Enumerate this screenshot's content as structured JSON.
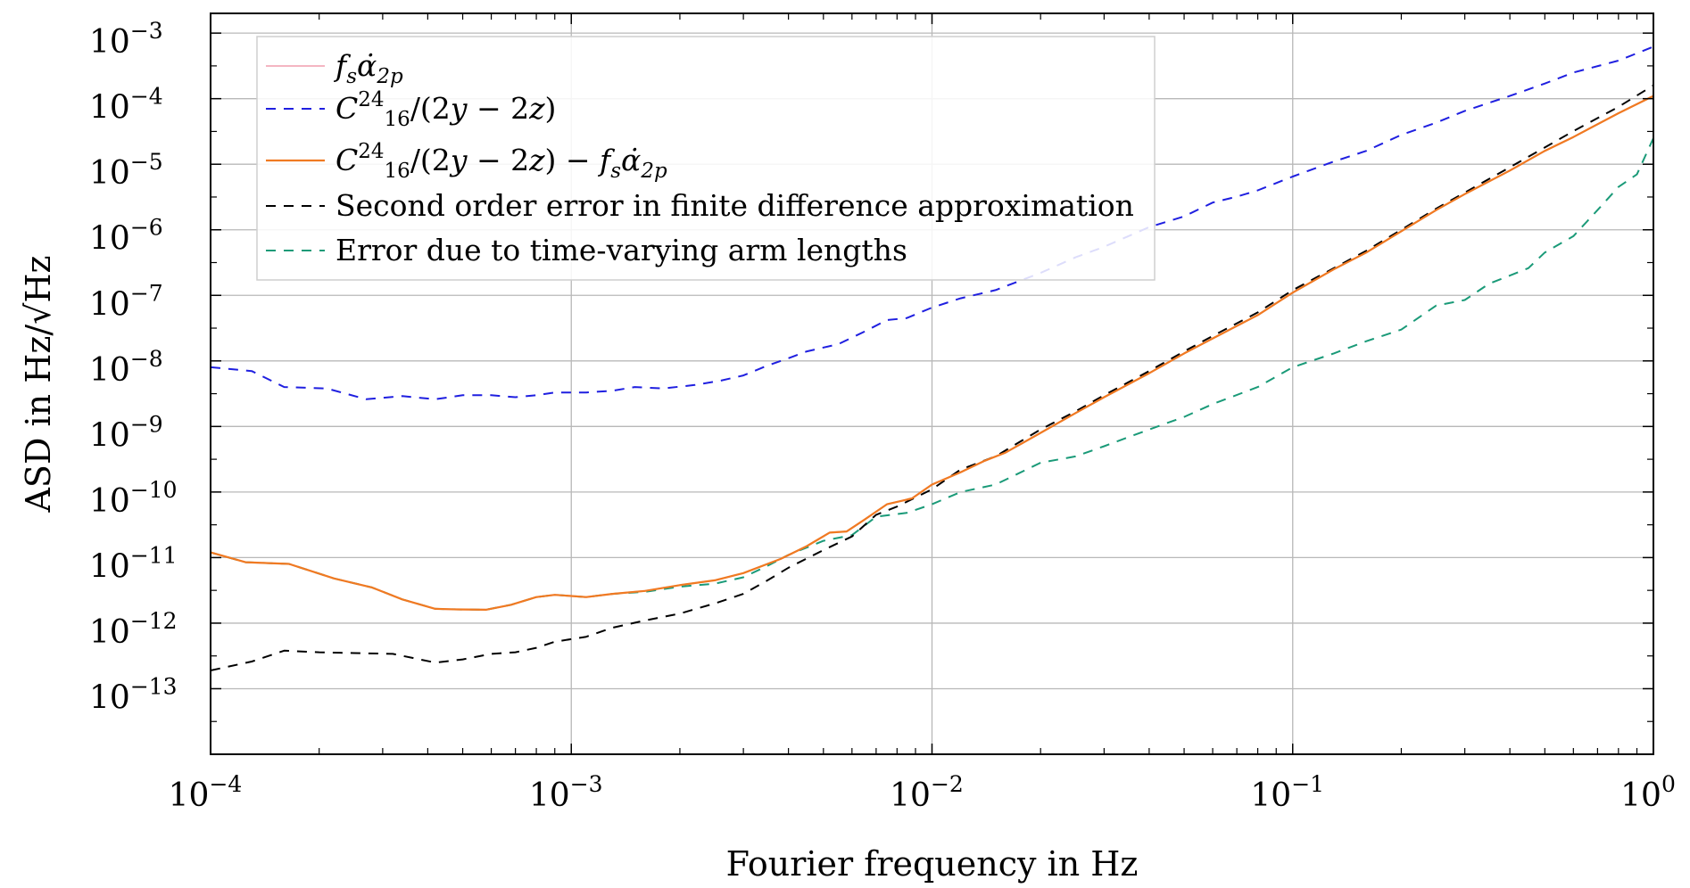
{
  "chart_data": {
    "type": "line",
    "title": "",
    "xlabel": "Fourier frequency in Hz",
    "ylabel": "ASD in Hz/√Hz",
    "xscale": "log",
    "yscale": "log",
    "xlim": [
      0.0001,
      1
    ],
    "ylim": [
      1e-14,
      0.002
    ],
    "grid": true,
    "legend_position": "top-left",
    "x_ticks": [
      {
        "value": 0.0001,
        "base": "10",
        "exp": "−4"
      },
      {
        "value": 0.001,
        "base": "10",
        "exp": "−3"
      },
      {
        "value": 0.01,
        "base": "10",
        "exp": "−2"
      },
      {
        "value": 0.1,
        "base": "10",
        "exp": "−1"
      },
      {
        "value": 1,
        "base": "10",
        "exp": "0"
      }
    ],
    "y_ticks": [
      {
        "value": 1e-13,
        "base": "10",
        "exp": "−13"
      },
      {
        "value": 1e-12,
        "base": "10",
        "exp": "−12"
      },
      {
        "value": 1e-11,
        "base": "10",
        "exp": "−11"
      },
      {
        "value": 1e-10,
        "base": "10",
        "exp": "−10"
      },
      {
        "value": 1e-09,
        "base": "10",
        "exp": "−9"
      },
      {
        "value": 1e-08,
        "base": "10",
        "exp": "−8"
      },
      {
        "value": 1e-07,
        "base": "10",
        "exp": "−7"
      },
      {
        "value": 1e-06,
        "base": "10",
        "exp": "−6"
      },
      {
        "value": 1e-05,
        "base": "10",
        "exp": "−5"
      },
      {
        "value": 0.0001,
        "base": "10",
        "exp": "−4"
      },
      {
        "value": 0.001,
        "base": "10",
        "exp": "−3"
      }
    ],
    "series": [
      {
        "name": "f_s α̇_2p",
        "legend": {
          "parts": [
            {
              "text": "f",
              "style": "italic"
            },
            {
              "text": "s",
              "style": "sub-italic"
            },
            {
              "text": "α̇",
              "style": "italic"
            },
            {
              "text": "2p",
              "style": "sub-italic"
            }
          ]
        },
        "color": "#f4b6c2",
        "dash": "solid",
        "width": 2,
        "x": [
          0.0001,
          0.000125,
          0.000165,
          0.00022,
          0.00028,
          0.00034,
          0.00042,
          0.00048,
          0.00058,
          0.00068,
          0.0008,
          0.0009,
          0.0011,
          0.0013,
          0.0016,
          0.002,
          0.0025,
          0.003,
          0.0038,
          0.0045,
          0.0052,
          0.0058,
          0.0065,
          0.0075,
          0.0088,
          0.01,
          0.012,
          0.014,
          0.016,
          0.02,
          0.025,
          0.03,
          0.04,
          0.05,
          0.06,
          0.08,
          0.1,
          0.13,
          0.16,
          0.2,
          0.25,
          0.3,
          0.4,
          0.5,
          0.6,
          0.8,
          1.0
        ],
        "values": [
          1.2e-11,
          8.5e-12,
          8e-12,
          4.8e-12,
          3.5e-12,
          2.3e-12,
          1.65e-12,
          1.62e-12,
          1.6e-12,
          1.9e-12,
          2.5e-12,
          2.7e-12,
          2.5e-12,
          2.8e-12,
          3.1e-12,
          3.8e-12,
          4.5e-12,
          5.8e-12,
          9.5e-12,
          1.5e-11,
          2.4e-11,
          2.5e-11,
          3.8e-11,
          6.5e-11,
          8e-11,
          1.3e-10,
          2e-10,
          3e-10,
          4e-10,
          8e-10,
          1.6e-09,
          2.8e-09,
          6.5e-09,
          1.3e-08,
          2.2e-08,
          5e-08,
          1.1e-07,
          2.5e-07,
          4.5e-07,
          9.5e-07,
          2e-06,
          3.5e-06,
          8e-06,
          1.6e-05,
          2.6e-05,
          6e-05,
          0.00011
        ]
      },
      {
        "name": "C_16^24/(2y − 2z)",
        "legend": {
          "parts": [
            {
              "text": "C",
              "style": "italic"
            },
            {
              "text": "24",
              "style": "sup"
            },
            {
              "text": "16",
              "style": "sub"
            },
            {
              "text": "/(2",
              "style": "normal"
            },
            {
              "text": "y",
              "style": "italic"
            },
            {
              "text": " − 2",
              "style": "normal"
            },
            {
              "text": "z",
              "style": "italic"
            },
            {
              "text": ")",
              "style": "normal"
            }
          ]
        },
        "color": "#1f1fe0",
        "dash": "dashed",
        "width": 2,
        "x": [
          0.0001,
          0.00013,
          0.00016,
          0.00021,
          0.00027,
          0.00034,
          0.00042,
          0.0005,
          0.0006,
          0.0007,
          0.0008,
          0.0009,
          0.0011,
          0.0013,
          0.0015,
          0.0018,
          0.0022,
          0.0026,
          0.003,
          0.0035,
          0.004,
          0.0045,
          0.0055,
          0.0065,
          0.0075,
          0.0085,
          0.01,
          0.012,
          0.015,
          0.02,
          0.025,
          0.03,
          0.04,
          0.05,
          0.06,
          0.07,
          0.08,
          0.1,
          0.13,
          0.16,
          0.2,
          0.25,
          0.3,
          0.4,
          0.5,
          0.6,
          0.8,
          1.0
        ],
        "values": [
          8e-09,
          7e-09,
          4e-09,
          3.8e-09,
          2.6e-09,
          2.9e-09,
          2.6e-09,
          3e-09,
          3e-09,
          2.8e-09,
          3e-09,
          3.3e-09,
          3.3e-09,
          3.5e-09,
          4e-09,
          3.8e-09,
          4.3e-09,
          5e-09,
          6e-09,
          8.5e-09,
          1.1e-08,
          1.4e-08,
          1.8e-08,
          2.8e-08,
          4.2e-08,
          4.5e-08,
          6.5e-08,
          9e-08,
          1.2e-07,
          2.2e-07,
          3.8e-07,
          5.5e-07,
          1.1e-06,
          1.6e-06,
          2.6e-06,
          3.2e-06,
          4e-06,
          6.5e-06,
          1.1e-05,
          1.6e-05,
          2.8e-05,
          4.3e-05,
          6.5e-05,
          0.00011,
          0.00017,
          0.00025,
          0.00038,
          0.00062
        ]
      },
      {
        "name": "C_16^24/(2y − 2z) − f_s α̇_2p",
        "legend": {
          "parts": [
            {
              "text": "C",
              "style": "italic"
            },
            {
              "text": "24",
              "style": "sup"
            },
            {
              "text": "16",
              "style": "sub"
            },
            {
              "text": "/(2",
              "style": "normal"
            },
            {
              "text": "y",
              "style": "italic"
            },
            {
              "text": " − 2",
              "style": "normal"
            },
            {
              "text": "z",
              "style": "italic"
            },
            {
              "text": ") − ",
              "style": "normal"
            },
            {
              "text": "f",
              "style": "italic"
            },
            {
              "text": "s",
              "style": "sub-italic"
            },
            {
              "text": "α̇",
              "style": "italic"
            },
            {
              "text": "2p",
              "style": "sub-italic"
            }
          ]
        },
        "color": "#f07a22",
        "dash": "solid",
        "width": 2.2,
        "x": [
          0.0001,
          0.000125,
          0.000165,
          0.00022,
          0.00028,
          0.00034,
          0.00042,
          0.00048,
          0.00058,
          0.00068,
          0.0008,
          0.0009,
          0.0011,
          0.0013,
          0.0016,
          0.002,
          0.0025,
          0.003,
          0.0038,
          0.0045,
          0.0052,
          0.0058,
          0.0065,
          0.0075,
          0.0088,
          0.01,
          0.012,
          0.014,
          0.016,
          0.02,
          0.025,
          0.03,
          0.04,
          0.05,
          0.06,
          0.08,
          0.1,
          0.13,
          0.16,
          0.2,
          0.25,
          0.3,
          0.4,
          0.5,
          0.6,
          0.8,
          1.0
        ],
        "values": [
          1.2e-11,
          8.5e-12,
          8e-12,
          4.8e-12,
          3.5e-12,
          2.3e-12,
          1.65e-12,
          1.62e-12,
          1.6e-12,
          1.9e-12,
          2.5e-12,
          2.7e-12,
          2.5e-12,
          2.8e-12,
          3.1e-12,
          3.8e-12,
          4.5e-12,
          5.8e-12,
          9.5e-12,
          1.5e-11,
          2.4e-11,
          2.5e-11,
          3.8e-11,
          6.5e-11,
          8e-11,
          1.3e-10,
          2e-10,
          3e-10,
          4e-10,
          8e-10,
          1.6e-09,
          2.8e-09,
          6.5e-09,
          1.3e-08,
          2.2e-08,
          5e-08,
          1.1e-07,
          2.5e-07,
          4.5e-07,
          9.5e-07,
          2e-06,
          3.5e-06,
          8e-06,
          1.6e-05,
          2.6e-05,
          6e-05,
          0.00011
        ]
      },
      {
        "name": "Second order error in finite difference approximation",
        "legend": {
          "parts": [
            {
              "text": "Second order error in finite difference approximation",
              "style": "normal"
            }
          ]
        },
        "color": "#000000",
        "dash": "dashed",
        "width": 2,
        "x": [
          0.0001,
          0.00013,
          0.00016,
          0.0002,
          0.00025,
          0.00032,
          0.00042,
          0.0005,
          0.0006,
          0.0007,
          0.0008,
          0.0009,
          0.0011,
          0.0013,
          0.0016,
          0.002,
          0.0025,
          0.003,
          0.0035,
          0.004,
          0.005,
          0.006,
          0.007,
          0.008,
          0.01,
          0.012,
          0.015,
          0.02,
          0.025,
          0.03,
          0.04,
          0.05,
          0.06,
          0.08,
          0.1,
          0.13,
          0.16,
          0.2,
          0.25,
          0.3,
          0.4,
          0.5,
          0.6,
          0.8,
          1.0
        ],
        "values": [
          1.9e-13,
          2.6e-13,
          3.8e-13,
          3.6e-13,
          3.5e-13,
          3.4e-13,
          2.5e-13,
          2.8e-13,
          3.4e-13,
          3.6e-13,
          4.2e-13,
          5.2e-13,
          6.2e-13,
          8.5e-13,
          1.1e-12,
          1.4e-12,
          2e-12,
          2.8e-12,
          4.5e-12,
          7e-12,
          1.3e-11,
          2.1e-11,
          4.5e-11,
          6e-11,
          1.1e-10,
          2.2e-10,
          3.5e-10,
          9e-10,
          1.7e-09,
          3e-09,
          7e-09,
          1.4e-08,
          2.4e-08,
          5.5e-08,
          1.2e-07,
          2.6e-07,
          4.8e-07,
          1e-06,
          2.1e-06,
          3.7e-06,
          9e-06,
          1.8e-05,
          3.2e-05,
          7.5e-05,
          0.00016
        ]
      },
      {
        "name": "Error due to time-varying arm lengths",
        "legend": {
          "parts": [
            {
              "text": "Error due to time-varying arm lengths",
              "style": "normal"
            }
          ]
        },
        "color": "#1a9a78",
        "dash": "dashed",
        "width": 2,
        "x": [
          0.0001,
          0.000125,
          0.000165,
          0.00022,
          0.00028,
          0.00034,
          0.00042,
          0.00048,
          0.00058,
          0.00068,
          0.0008,
          0.0009,
          0.0011,
          0.0013,
          0.0016,
          0.002,
          0.0025,
          0.003,
          0.0035,
          0.004,
          0.005,
          0.006,
          0.007,
          0.0085,
          0.01,
          0.012,
          0.015,
          0.02,
          0.025,
          0.03,
          0.04,
          0.05,
          0.06,
          0.08,
          0.1,
          0.13,
          0.16,
          0.2,
          0.25,
          0.3,
          0.35,
          0.4,
          0.45,
          0.5,
          0.6,
          0.7,
          0.8,
          0.9,
          1.0
        ],
        "values": [
          1.2e-11,
          8.5e-12,
          8e-12,
          4.8e-12,
          3.5e-12,
          2.3e-12,
          1.65e-12,
          1.62e-12,
          1.6e-12,
          1.9e-12,
          2.5e-12,
          2.7e-12,
          2.5e-12,
          2.8e-12,
          3e-12,
          3.6e-12,
          4e-12,
          5e-12,
          7.5e-12,
          1.1e-11,
          1.8e-11,
          2.2e-11,
          4.2e-11,
          4.8e-11,
          6.5e-11,
          1e-10,
          1.3e-10,
          2.8e-10,
          3.5e-10,
          5e-10,
          9e-10,
          1.4e-09,
          2.2e-09,
          4e-09,
          8e-09,
          1.3e-08,
          2e-08,
          3e-08,
          7e-08,
          8.5e-08,
          1.5e-07,
          2e-07,
          2.6e-07,
          4.5e-07,
          8e-07,
          2e-06,
          4.5e-06,
          7e-06,
          2.5e-05
        ]
      }
    ]
  }
}
